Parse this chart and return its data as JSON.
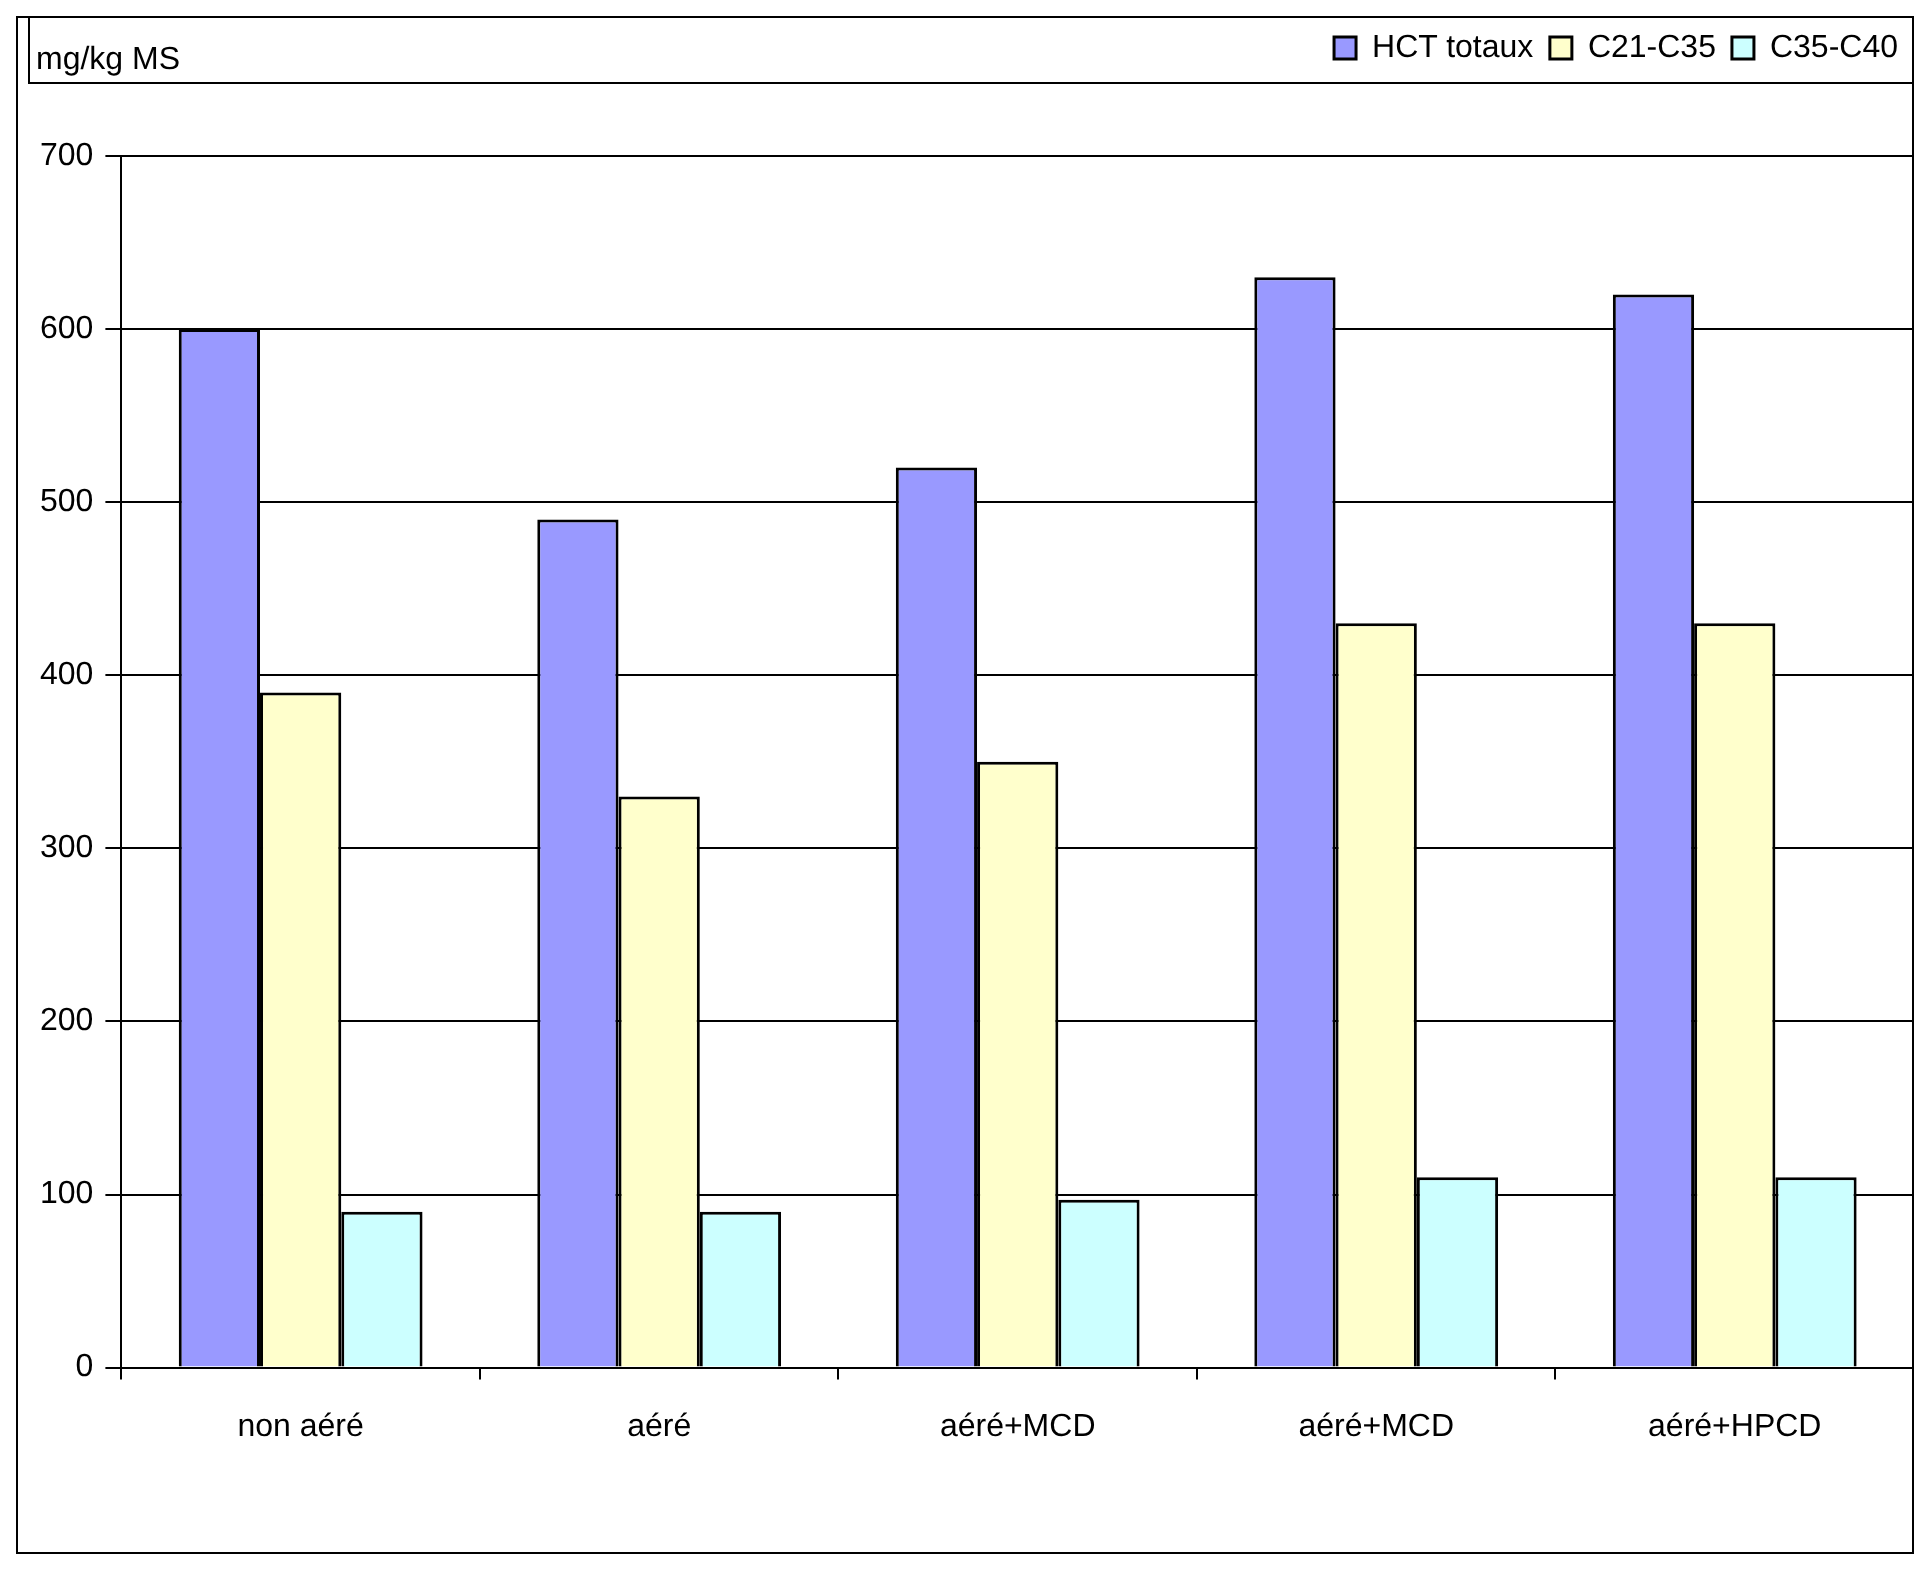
{
  "chart_data": {
    "type": "bar",
    "ylabel": "mg/kg MS",
    "categories": [
      "non aéré",
      "aéré",
      "aéré+MCD",
      "aéré+MCD",
      "aéré+HPCD"
    ],
    "series": [
      {
        "name": "HCT totaux",
        "color": "#9999ff",
        "values": [
          600,
          490,
          520,
          630,
          620
        ]
      },
      {
        "name": "C21-C35",
        "color": "#ffffcc",
        "values": [
          390,
          330,
          350,
          430,
          430
        ]
      },
      {
        "name": "C35-C40",
        "color": "#ccffff",
        "values": [
          90,
          90,
          97,
          110,
          110
        ]
      }
    ],
    "ylim": [
      0,
      700
    ],
    "yticks": [
      0,
      100,
      200,
      300,
      400,
      500,
      600,
      700
    ],
    "grid": "y",
    "legend": "top right"
  }
}
